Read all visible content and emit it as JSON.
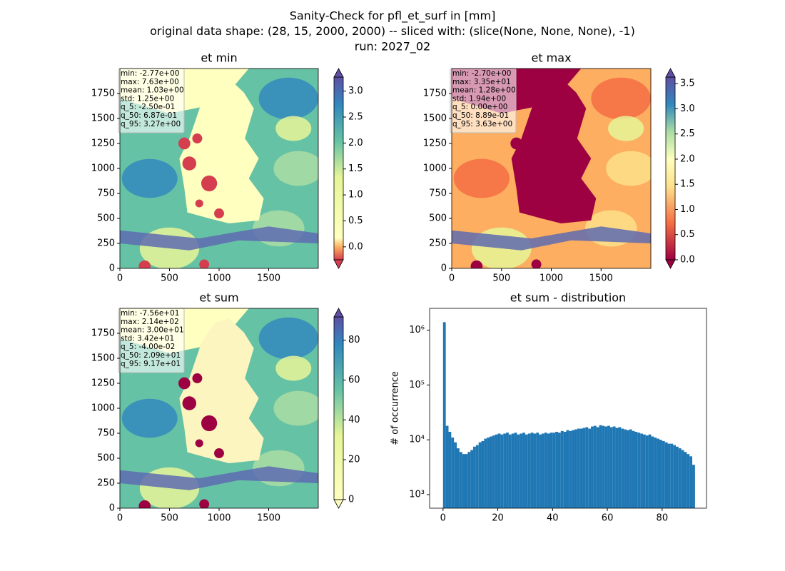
{
  "figure": {
    "title_lines": [
      "Sanity-Check for pfl_et_surf in [mm]",
      "original data shape: (28, 15, 2000, 2000) -- sliced with: (slice(None, None, None), -1)",
      "run: 2027_02"
    ]
  },
  "chart_data": [
    {
      "type": "heatmap",
      "title": "et min",
      "xlim": [
        0,
        2000
      ],
      "ylim": [
        0,
        2000
      ],
      "xticks": [
        0,
        500,
        1000,
        1500
      ],
      "yticks": [
        0,
        250,
        500,
        750,
        1000,
        1250,
        1500,
        1750
      ],
      "colorbar": {
        "lim": [
          -0.25,
          3.27
        ],
        "ticks": [
          {
            "value": 0,
            "label": "0.0"
          },
          0.5,
          {
            "value": 1,
            "label": "1.0"
          },
          1.5,
          {
            "value": 2,
            "label": "2.0"
          },
          2.5,
          {
            "value": 3,
            "label": "3.0"
          }
        ]
      },
      "stats": [
        "min: -2.77e+00",
        "max: 7.63e+00",
        "mean: 1.03e+00",
        "std: 1.25e+00",
        "q_5: -2.50e-01",
        "q_50: 6.87e-01",
        "q_95: 3.27e+00"
      ]
    },
    {
      "type": "heatmap",
      "title": "et max",
      "xlim": [
        0,
        2000
      ],
      "ylim": [
        0,
        2000
      ],
      "xticks": [
        0,
        500,
        1000,
        1500
      ],
      "yticks": [
        0,
        250,
        500,
        750,
        1000,
        1250,
        1500,
        1750
      ],
      "colorbar": {
        "lim": [
          0,
          3.63
        ],
        "ticks": [
          {
            "value": 0,
            "label": "0.0"
          },
          0.5,
          {
            "value": 1,
            "label": "1.0"
          },
          1.5,
          {
            "value": 2,
            "label": "2.0"
          },
          2.5,
          {
            "value": 3,
            "label": "3.0"
          },
          3.5
        ]
      },
      "stats": [
        "min: -2.70e+00",
        "max: 3.35e+01",
        "mean: 1.28e+00",
        "std: 1.94e+00",
        "q_5: 0.00e+00",
        "q_50: 8.89e-01",
        "q_95: 3.63e+00"
      ]
    },
    {
      "type": "heatmap",
      "title": "et sum",
      "xlim": [
        0,
        2000
      ],
      "ylim": [
        0,
        2000
      ],
      "xticks": [
        0,
        500,
        1000,
        1500
      ],
      "yticks": [
        0,
        250,
        500,
        750,
        1000,
        1250,
        1500,
        1750
      ],
      "colorbar": {
        "lim": [
          -0.04,
          91.7
        ],
        "ticks": [
          0,
          20,
          40,
          60,
          80
        ]
      },
      "stats": [
        "min: -7.56e+01",
        "max: 2.14e+02",
        "mean: 3.00e+01",
        "std: 3.42e+01",
        "q_5: -4.00e-02",
        "q_50: 2.09e+01",
        "q_95: 9.17e+01"
      ]
    },
    {
      "type": "histogram",
      "title": "et sum - distribution",
      "ylabel": "# of occurrence",
      "color": "#1f77b4",
      "log_y": true,
      "xlim": [
        -4.9,
        96.2
      ],
      "ylim": [
        566,
        2500000
      ],
      "xticks": [
        0,
        20,
        40,
        60,
        80
      ],
      "yticks": [
        {
          "value": 1000,
          "label": "10³"
        },
        {
          "value": 10000,
          "label": "10⁴"
        },
        {
          "value": 100000,
          "label": "10⁵"
        },
        {
          "value": 1000000,
          "label": "10⁶"
        }
      ],
      "bins": [
        0,
        1,
        2,
        3,
        4,
        5,
        6,
        7,
        8,
        9,
        10,
        11,
        12,
        13,
        14,
        15,
        16,
        17,
        18,
        19,
        20,
        21,
        22,
        23,
        24,
        25,
        26,
        27,
        28,
        29,
        30,
        31,
        32,
        33,
        34,
        35,
        36,
        37,
        38,
        39,
        40,
        41,
        42,
        43,
        44,
        45,
        46,
        47,
        48,
        49,
        50,
        51,
        52,
        53,
        54,
        55,
        56,
        57,
        58,
        59,
        60,
        61,
        62,
        63,
        64,
        65,
        66,
        67,
        68,
        69,
        70,
        71,
        72,
        73,
        74,
        75,
        76,
        77,
        78,
        79,
        80,
        81,
        82,
        83,
        84,
        85,
        86,
        87,
        88,
        89,
        90,
        91,
        92
      ],
      "values": [
        1400000,
        18000,
        14000,
        11000,
        9000,
        7000,
        6000,
        5500,
        5500,
        6000,
        6500,
        7500,
        8000,
        9000,
        9500,
        10500,
        11000,
        11500,
        12000,
        12500,
        13000,
        12500,
        13000,
        13500,
        12500,
        13000,
        13500,
        12500,
        13000,
        13500,
        12500,
        13000,
        13500,
        13000,
        13500,
        12500,
        13000,
        13500,
        13000,
        13500,
        13500,
        14000,
        13500,
        14500,
        14000,
        15000,
        14500,
        15000,
        15500,
        16000,
        16000,
        16500,
        17000,
        16000,
        17500,
        18000,
        17000,
        18500,
        18000,
        17500,
        18000,
        17000,
        17500,
        16500,
        17000,
        16000,
        15500,
        15000,
        15500,
        14500,
        14000,
        13500,
        13000,
        12500,
        12000,
        12500,
        11500,
        11000,
        10500,
        10000,
        9500,
        9000,
        8500,
        8500,
        8000,
        7500,
        7000,
        6500,
        6000,
        5500,
        5000,
        3500
      ]
    }
  ]
}
